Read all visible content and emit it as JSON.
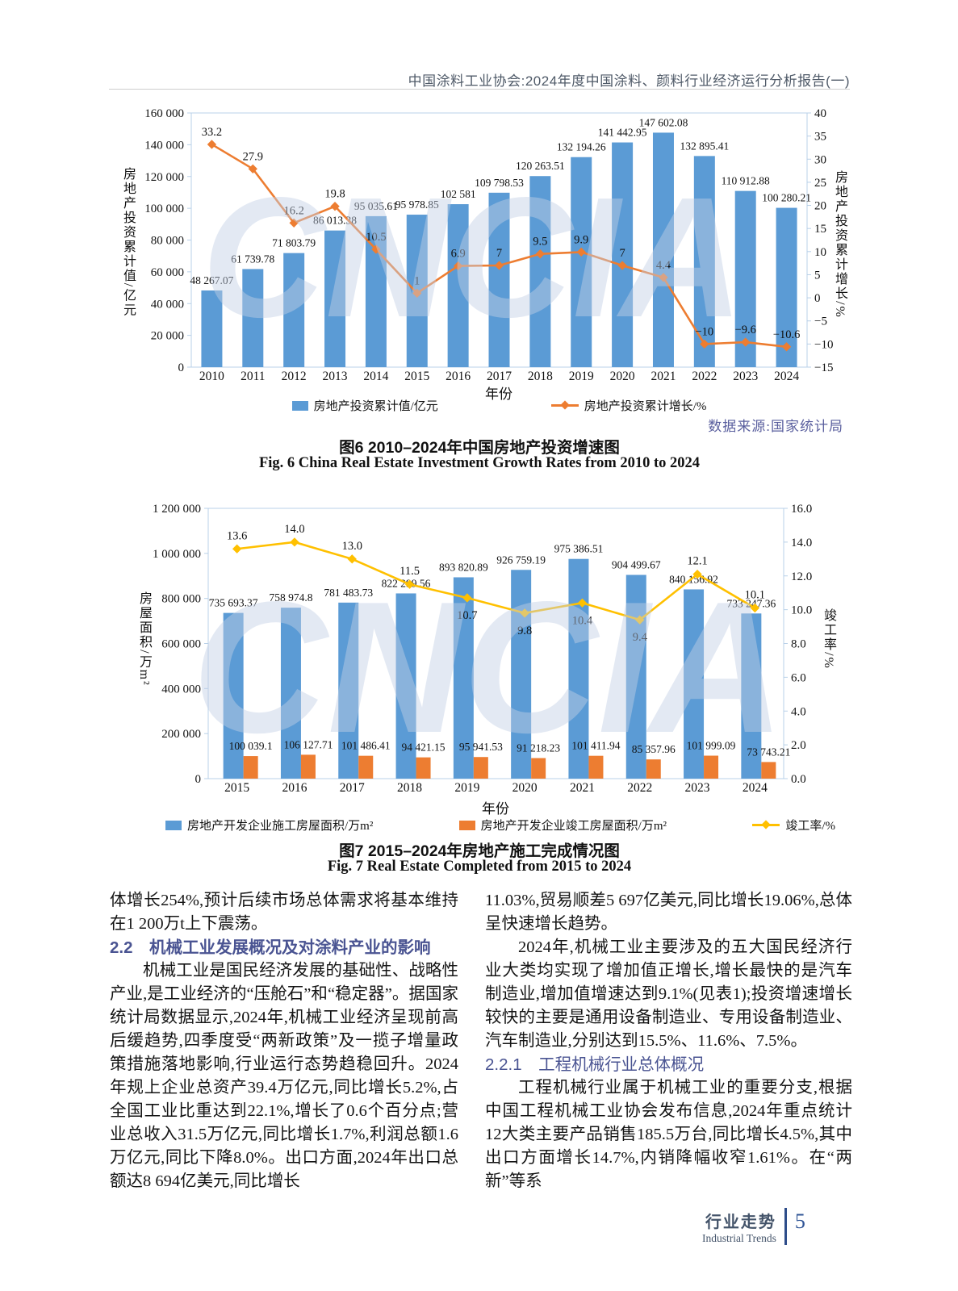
{
  "header": {
    "title": "中国涂料工业协会:2024年度中国涂料、颜料行业经济运行分析报告(一)"
  },
  "watermark": "CNCIA",
  "chart_data": [
    {
      "type": "bar",
      "categories": [
        "2010",
        "2011",
        "2012",
        "2013",
        "2014",
        "2015",
        "2016",
        "2017",
        "2018",
        "2019",
        "2020",
        "2021",
        "2022",
        "2023",
        "2024"
      ],
      "series": [
        {
          "name": "房地产投资累计值/亿元",
          "type": "bar",
          "color": "#5b9bd5",
          "values": [
            48267.07,
            61739.78,
            71803.79,
            86013.38,
            95035.61,
            95978.85,
            102581,
            109798.53,
            120263.51,
            132194.26,
            141442.95,
            147602.08,
            132895.41,
            110912.88,
            100280.21
          ],
          "labels": [
            "48 267.07",
            "61 739.78",
            "71 803.79",
            "86 013.38",
            "95 035.61",
            "95 978.85",
            "102 581",
            "109 798.53",
            "120 263.51",
            "132 194.26",
            "141 442.95",
            "147 602.08",
            "132 895.41",
            "110 912.88",
            "100 280.21"
          ]
        },
        {
          "name": "房地产投资累计增长/%",
          "type": "line",
          "axis": "right",
          "color": "#ed7d31",
          "values": [
            33.2,
            27.9,
            16.2,
            19.8,
            10.5,
            1,
            6.9,
            7,
            9.5,
            9.9,
            7,
            4.4,
            -10,
            -9.6,
            -10.6
          ],
          "labels": [
            "33.2",
            "27.9",
            "16.2",
            "19.8",
            "10.5",
            "1",
            "6.9",
            "7",
            "9.5",
            "9.9",
            "7",
            "4.4",
            "−10",
            "−9.6",
            "−10.6"
          ]
        }
      ],
      "xlabel": "年份",
      "ylabel_left": "房地产投资累计值/亿元",
      "ylabel_right": "房地产投资累计增长/%",
      "ylim_left": [
        0,
        160000
      ],
      "ylim_right": [
        -15,
        40
      ],
      "left_ticks": [
        "160 000",
        "140 000",
        "120 000",
        "100 000",
        "80 000",
        "60 000",
        "40 000",
        "20 000",
        "0"
      ],
      "right_ticks": [
        "40",
        "35",
        "30",
        "25",
        "20",
        "15",
        "10",
        "5",
        "0",
        "−5",
        "−10",
        "−15"
      ],
      "source": "数据来源:国家统计局",
      "caption_cn": "图6  2010–2024年中国房地产投资增速图",
      "caption_en": "Fig. 6  China Real Estate Investment Growth Rates from 2010 to 2024"
    },
    {
      "type": "bar",
      "categories": [
        "2015",
        "2016",
        "2017",
        "2018",
        "2019",
        "2020",
        "2021",
        "2022",
        "2023",
        "2024"
      ],
      "series": [
        {
          "name": "房地产开发企业施工房屋面积/万m²",
          "type": "bar",
          "color": "#5b9bd5",
          "values": [
            735693.37,
            758974.8,
            781483.73,
            822299.56,
            893820.89,
            926759.19,
            975386.51,
            904499.67,
            840156.92,
            733247.36
          ],
          "labels": [
            "735 693.37",
            "758 974.8",
            "781 483.73",
            "822 299.56",
            "893 820.89",
            "926 759.19",
            "975 386.51",
            "904 499.67",
            "840 156.92",
            "733 247.36"
          ]
        },
        {
          "name": "房地产开发企业竣工房屋面积/万m²",
          "type": "bar",
          "color": "#ed7d31",
          "values": [
            100039.1,
            106127.71,
            101486.41,
            94421.15,
            95941.53,
            91218.23,
            101411.94,
            85357.96,
            101999.09,
            73743.21
          ],
          "labels": [
            "100 039.1",
            "106 127.71",
            "101 486.41",
            "94 421.15",
            "95 941.53",
            "91 218.23",
            "101 411.94",
            "85 357.96",
            "101 999.09",
            "73 743.21"
          ]
        },
        {
          "name": "竣工率/%",
          "type": "line",
          "axis": "right",
          "color": "#ffc000",
          "values": [
            13.6,
            14.0,
            13.0,
            11.5,
            10.7,
            9.8,
            10.4,
            9.4,
            12.1,
            10.1
          ],
          "labels": [
            "13.6",
            "14.0",
            "13.0",
            "11.5",
            "10.7",
            "9.8",
            "10.4",
            "9.4",
            "12.1",
            "10.1"
          ]
        }
      ],
      "xlabel": "年份",
      "ylabel_left": "房屋面积/万m²",
      "ylabel_right": "竣工率/%",
      "ylim_left": [
        0,
        1200000
      ],
      "ylim_right": [
        0,
        16
      ],
      "left_ticks": [
        "1 200 000",
        "1 000 000",
        "800 000",
        "600 000",
        "400 000",
        "200 000",
        "0"
      ],
      "right_ticks": [
        "16.0",
        "14.0",
        "12.0",
        "10.0",
        "8.0",
        "6.0",
        "4.0",
        "2.0",
        "0.0"
      ],
      "caption_cn": "图7  2015–2024年房地产施工完成情况图",
      "caption_en": "Fig. 7  Real Estate Completed from 2015 to 2024"
    }
  ],
  "body": {
    "left_column": [
      {
        "type": "p",
        "indent": false,
        "text": "体增长254%,预计后续市场总体需求将基本维持在1 200万t上下震荡。"
      },
      {
        "type": "h2",
        "num": "2.2",
        "text": "机械工业发展概况及对涂料产业的影响"
      },
      {
        "type": "p",
        "indent": true,
        "text": "机械工业是国民经济发展的基础性、战略性产业,是工业经济的“压舱石”和“稳定器”。据国家统计局数据显示,2024年,机械工业经济呈现前高后缓趋势,四季度受“两新政策”及一揽子增量政策措施落地影响,行业运行态势趋稳回升。2024年规上企业总资产39.4万亿元,同比增长5.2%,占全国工业比重达到22.1%,增长了0.6个百分点;营业总收入31.5万亿元,同比增长1.7%,利润总额1.6万亿元,同比下降8.0%。出口方面,2024年出口总额达8 694亿美元,同比增长"
      }
    ],
    "right_column": [
      {
        "type": "p",
        "indent": false,
        "text": "11.03%,贸易顺差5 697亿美元,同比增长19.06%,总体呈快速增长趋势。"
      },
      {
        "type": "p",
        "indent": true,
        "text": "2024年,机械工业主要涉及的五大国民经济行业大类均实现了增加值正增长,增长最快的是汽车制造业,增加值增速达到9.1%(见表1);投资增速增长较快的主要是通用设备制造业、专用设备制造业、汽车制造业,分别达到15.5%、11.6%、7.5%。"
      },
      {
        "type": "h3",
        "num": "2.2.1",
        "text": "工程机械行业总体概况"
      },
      {
        "type": "p",
        "indent": true,
        "text": "工程机械行业属于机械工业的重要分支,根据中国工程机械工业协会发布信息,2024年重点统计12大类主要产品销售185.5万台,同比增长4.5%,其中出口方面增长14.7%,内销降幅收窄1.61%。在“两新”等系"
      }
    ]
  },
  "footer": {
    "cn": "行业走势",
    "en": "Industrial Trends",
    "page": "5"
  }
}
